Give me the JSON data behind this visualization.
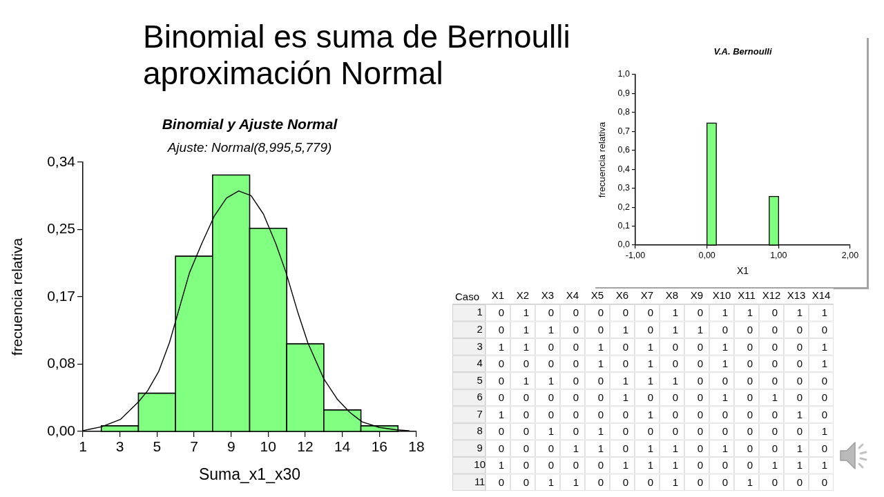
{
  "chart_data": [
    {
      "type": "other",
      "title": "Binomial es suma de Bernoulli\naproximación Normal"
    },
    {
      "type": "histogram",
      "title": "Binomial y Ajuste Normal",
      "subtitle": "Ajuste: Normal(8,995,5,779)",
      "xlabel": "Suma_x1_x30",
      "ylabel": "frecuencia relativa",
      "bins": [
        1.94,
        3.83,
        5.72,
        7.61,
        9.5,
        11.39,
        13.28,
        15.17,
        17.06
      ],
      "series": [
        {
          "type": "histogram",
          "color": "#80ff80",
          "values": [
            0.007,
            0.048,
            0.22,
            0.322,
            0.255,
            0.11,
            0.027,
            0.007
          ]
        },
        {
          "type": "line",
          "color": "#000000",
          "x": [
            1.0,
            1.4,
            1.97,
            2.91,
            3.83,
            4.3,
            4.86,
            5.42,
            5.93,
            6.43,
            7.06,
            7.69,
            8.32,
            8.94,
            9.57,
            10.2,
            10.83,
            11.36,
            11.96,
            12.47,
            13.28,
            13.98,
            14.6,
            15.23,
            16.11,
            16.99,
            17.62
          ],
          "values": [
            0.001,
            0.003,
            0.006,
            0.015,
            0.037,
            0.051,
            0.075,
            0.112,
            0.156,
            0.199,
            0.236,
            0.27,
            0.293,
            0.302,
            0.296,
            0.273,
            0.236,
            0.199,
            0.149,
            0.111,
            0.066,
            0.04,
            0.024,
            0.012,
            0.005,
            0.002,
            0.001
          ]
        }
      ],
      "xlim": [
        1,
        18
      ],
      "xticks": [
        1,
        {
          "value": 2.89,
          "label": "3"
        },
        {
          "value": 4.78,
          "label": "5"
        },
        {
          "value": 6.67,
          "label": "7"
        },
        {
          "value": 8.56,
          "label": "9"
        },
        {
          "value": 10.44,
          "label": "10"
        },
        {
          "value": 12.33,
          "label": "12"
        },
        {
          "value": 14.22,
          "label": "14"
        },
        {
          "value": 16.11,
          "label": "16"
        },
        18
      ],
      "ylim": [
        0,
        0.338
      ],
      "yticks": [
        {
          "value": 0,
          "label": "0,00"
        },
        {
          "value": 0.0845,
          "label": "0,08"
        },
        {
          "value": 0.169,
          "label": "0,17"
        },
        {
          "value": 0.2535,
          "label": "0,25"
        },
        {
          "value": 0.338,
          "label": "0,34"
        }
      ]
    },
    {
      "type": "histogram",
      "title": "V.A. Bernoulli",
      "xlabel": "X1",
      "ylabel": "frecuencia relativa",
      "bins": [
        0,
        0.13,
        0.87,
        1
      ],
      "values": [
        0.715,
        null,
        0.285
      ],
      "color": "#80ff80",
      "xlim": [
        -1,
        2
      ],
      "xticks": [
        {
          "value": -1,
          "label": "-1,00"
        },
        {
          "value": 0,
          "label": "0,00"
        },
        {
          "value": 1,
          "label": "1,00"
        },
        {
          "value": 2,
          "label": "2,00"
        }
      ],
      "ylim": [
        0,
        1
      ],
      "yticks": [
        {
          "value": 0,
          "label": "0,0"
        },
        {
          "value": 0.111,
          "label": "0,1"
        },
        {
          "value": 0.222,
          "label": "0,2"
        },
        {
          "value": 0.333,
          "label": "0,3"
        },
        {
          "value": 0.444,
          "label": "0,4"
        },
        {
          "value": 0.556,
          "label": "0,6"
        },
        {
          "value": 0.667,
          "label": "0,7"
        },
        {
          "value": 0.778,
          "label": "0,8"
        },
        {
          "value": 0.889,
          "label": "0,9"
        },
        {
          "value": 1,
          "label": "1,0"
        }
      ]
    },
    {
      "type": "heatmap",
      "ylabel": "Caso",
      "categories": [
        "X1",
        "X2",
        "X3",
        "X4",
        "X5",
        "X6",
        "X7",
        "X8",
        "X9",
        "X10",
        "X11",
        "X12",
        "X13",
        "X14"
      ],
      "y_categories": [
        "1",
        "2",
        "3",
        "4",
        "5",
        "6",
        "7",
        "8",
        "9",
        "10",
        "11"
      ],
      "cells": [
        [
          0,
          1,
          0,
          0,
          0,
          0,
          0,
          1,
          0,
          1,
          1,
          0,
          1,
          1
        ],
        [
          0,
          1,
          1,
          0,
          0,
          1,
          0,
          1,
          1,
          0,
          0,
          0,
          0,
          0
        ],
        [
          1,
          1,
          0,
          0,
          1,
          0,
          1,
          0,
          0,
          1,
          0,
          0,
          0,
          1
        ],
        [
          0,
          0,
          0,
          0,
          1,
          0,
          1,
          0,
          0,
          1,
          0,
          0,
          0,
          1
        ],
        [
          0,
          1,
          1,
          0,
          0,
          1,
          1,
          1,
          0,
          0,
          0,
          0,
          0,
          0
        ],
        [
          0,
          0,
          0,
          0,
          0,
          1,
          0,
          0,
          0,
          1,
          0,
          1,
          0,
          0
        ],
        [
          1,
          0,
          0,
          0,
          0,
          0,
          1,
          0,
          0,
          0,
          0,
          0,
          1,
          0
        ],
        [
          0,
          0,
          1,
          0,
          1,
          0,
          0,
          0,
          0,
          0,
          0,
          0,
          0,
          1
        ],
        [
          0,
          0,
          0,
          1,
          1,
          0,
          1,
          1,
          0,
          1,
          0,
          0,
          1,
          0
        ],
        [
          1,
          0,
          0,
          0,
          0,
          1,
          1,
          1,
          0,
          0,
          0,
          1,
          1,
          1
        ],
        [
          0,
          0,
          1,
          1,
          0,
          0,
          0,
          1,
          0,
          0,
          1,
          0,
          0,
          0
        ]
      ],
      "data_labels": true
    }
  ]
}
